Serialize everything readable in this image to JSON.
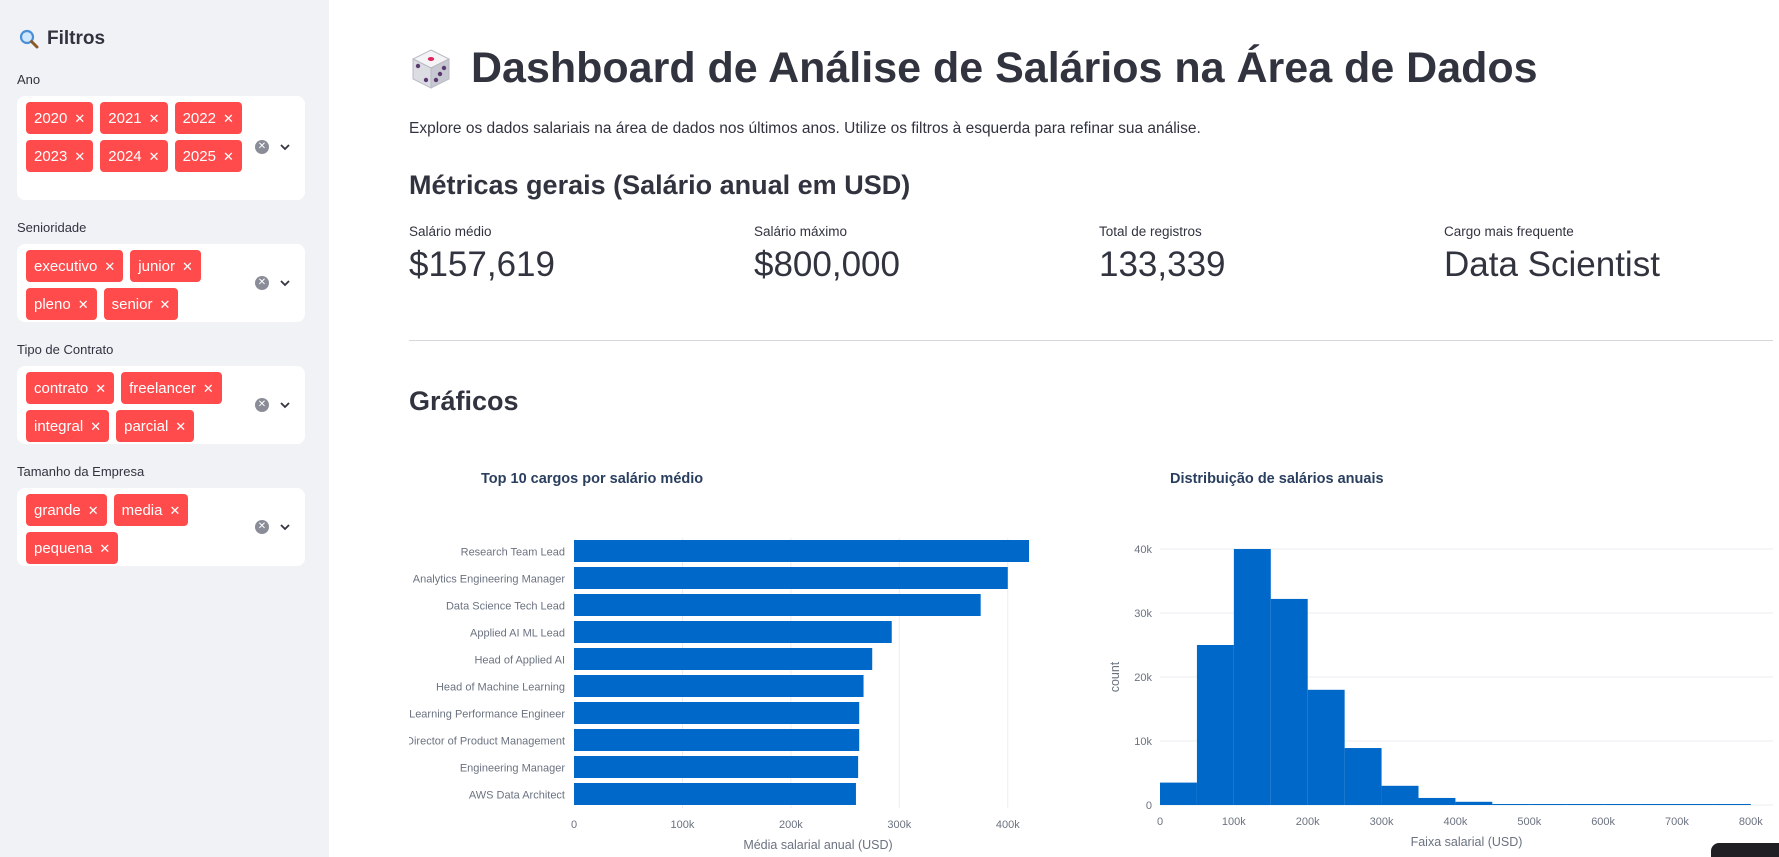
{
  "sidebar": {
    "title": "Filtros",
    "filters": [
      {
        "label": "Ano",
        "chips": [
          "2020",
          "2021",
          "2022",
          "2023",
          "2024",
          "2025"
        ]
      },
      {
        "label": "Senioridade",
        "chips": [
          "executivo",
          "junior",
          "pleno",
          "senior"
        ]
      },
      {
        "label": "Tipo de Contrato",
        "chips": [
          "contrato",
          "freelancer",
          "integral",
          "parcial"
        ]
      },
      {
        "label": "Tamanho da Empresa",
        "chips": [
          "grande",
          "media",
          "pequena"
        ]
      }
    ]
  },
  "main": {
    "title": "Dashboard de Análise de Salários na Área de Dados",
    "intro": "Explore os dados salariais na área de dados nos últimos anos. Utilize os filtros à esquerda para refinar sua análise.",
    "metrics_heading": "Métricas gerais (Salário anual em USD)",
    "metrics": [
      {
        "label": "Salário médio",
        "value": "$157,619"
      },
      {
        "label": "Salário máximo",
        "value": "$800,000"
      },
      {
        "label": "Total de registros",
        "value": "133,339"
      },
      {
        "label": "Cargo mais frequente",
        "value": "Data Scientist"
      }
    ],
    "charts_heading": "Gráficos"
  },
  "colors": {
    "accent": "#ff4b4b",
    "bar": "#0068c9",
    "sidebar_bg": "#f0f2f6"
  },
  "chart_data": [
    {
      "type": "bar",
      "orientation": "horizontal",
      "title": "Top 10 cargos por salário médio",
      "xlabel": "Média salarial anual (USD)",
      "ylabel": "",
      "categories": [
        "Research Team Lead",
        "Analytics Engineering Manager",
        "Data Science Tech Lead",
        "Applied AI ML Lead",
        "Head of Applied AI",
        "Head of Machine Learning",
        "Machine Learning Performance Engineer",
        "Director of Product Management",
        "Engineering Manager",
        "AWS Data Architect"
      ],
      "values": [
        450000,
        400000,
        375000,
        293000,
        275000,
        267000,
        263000,
        263000,
        262000,
        260000
      ],
      "xlim": [
        0,
        450000
      ],
      "xticks": [
        0,
        100000,
        200000,
        300000,
        400000
      ],
      "xtick_labels": [
        "0",
        "100k",
        "200k",
        "300k",
        "400k"
      ],
      "grid": true
    },
    {
      "type": "bar",
      "subtype": "histogram",
      "title": "Distribuição de salários anuais",
      "xlabel": "Faixa salarial (USD)",
      "ylabel": "count",
      "bins": [
        [
          0,
          50000
        ],
        [
          50000,
          100000
        ],
        [
          100000,
          150000
        ],
        [
          150000,
          200000
        ],
        [
          200000,
          250000
        ],
        [
          250000,
          300000
        ],
        [
          300000,
          350000
        ],
        [
          350000,
          400000
        ],
        [
          400000,
          450000
        ],
        [
          450000,
          500000
        ],
        [
          500000,
          550000
        ],
        [
          550000,
          600000
        ],
        [
          600000,
          650000
        ],
        [
          650000,
          700000
        ],
        [
          700000,
          750000
        ],
        [
          750000,
          800000
        ]
      ],
      "values": [
        3500,
        25000,
        40000,
        32200,
        18000,
        8900,
        3000,
        1100,
        500,
        150,
        100,
        80,
        60,
        40,
        30,
        30
      ],
      "xlim": [
        0,
        830000
      ],
      "ylim": [
        0,
        40000
      ],
      "xticks": [
        0,
        100000,
        200000,
        300000,
        400000,
        500000,
        600000,
        700000,
        800000
      ],
      "xtick_labels": [
        "0",
        "100k",
        "200k",
        "300k",
        "400k",
        "500k",
        "600k",
        "700k",
        "800k"
      ],
      "yticks": [
        0,
        10000,
        20000,
        30000,
        40000
      ],
      "ytick_labels": [
        "0",
        "10k",
        "20k",
        "30k",
        "40k"
      ],
      "grid": true
    }
  ]
}
